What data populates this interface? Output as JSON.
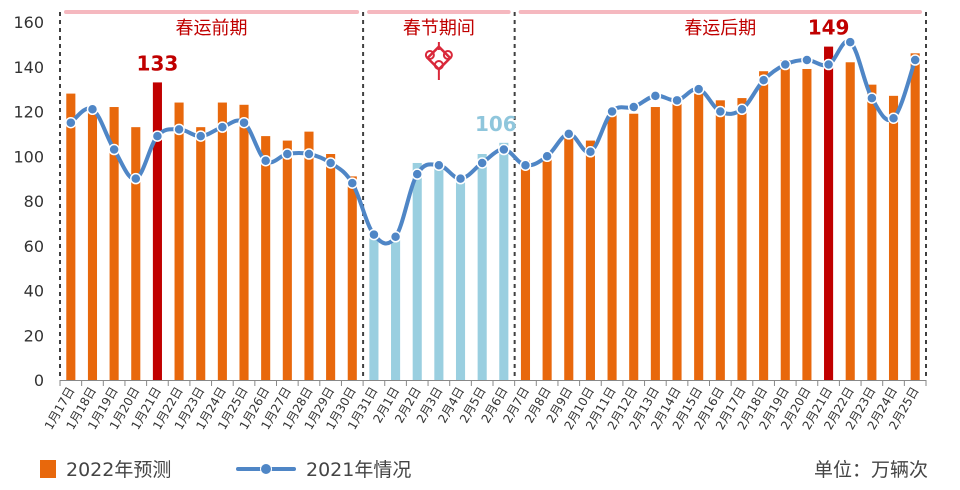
{
  "chart_data": {
    "type": "bar",
    "categories": [
      "1月17日",
      "1月18日",
      "1月19日",
      "1月20日",
      "1月21日",
      "1月22日",
      "1月23日",
      "1月24日",
      "1月25日",
      "1月26日",
      "1月27日",
      "1月28日",
      "1月29日",
      "1月30日",
      "1月31日",
      "2月1日",
      "2月2日",
      "2月3日",
      "2月4日",
      "2月5日",
      "2月6日",
      "2月7日",
      "2月8日",
      "2月9日",
      "2月10日",
      "2月11日",
      "2月12日",
      "2月13日",
      "2月14日",
      "2月15日",
      "2月16日",
      "2月17日",
      "2月18日",
      "2月19日",
      "2月20日",
      "2月21日",
      "2月22日",
      "2月23日",
      "2月24日",
      "2月25日"
    ],
    "series": [
      {
        "name": "2022年预测",
        "type": "bar",
        "values": [
          128,
          121,
          122,
          113,
          133,
          124,
          113,
          124,
          123,
          109,
          107,
          111,
          101,
          91,
          65,
          63,
          97,
          97,
          90,
          101,
          106,
          98,
          100,
          110,
          107,
          120,
          119,
          122,
          124,
          128,
          125,
          126,
          138,
          143,
          139,
          149,
          142,
          132,
          127,
          146
        ]
      },
      {
        "name": "2021年情况",
        "type": "line",
        "values": [
          115,
          121,
          103,
          90,
          109,
          112,
          109,
          113,
          115,
          98,
          101,
          101,
          97,
          88,
          65,
          64,
          92,
          96,
          90,
          97,
          103,
          96,
          100,
          110,
          102,
          120,
          122,
          127,
          125,
          130,
          120,
          121,
          134,
          141,
          143,
          141,
          151,
          126,
          117,
          143
        ]
      }
    ],
    "bar_colors": {
      "pre": "#E8680C",
      "festival": "#9ACFE0",
      "peak": "#C00000"
    },
    "line_color": "#4F86C6",
    "periods": [
      {
        "label": "春运前期",
        "start": 0,
        "end": 13
      },
      {
        "label": "春节期间",
        "start": 14,
        "end": 20
      },
      {
        "label": "春运后期",
        "start": 21,
        "end": 39
      }
    ],
    "annotations": [
      {
        "index": 4,
        "text": "133",
        "color": "#C00000"
      },
      {
        "index": 20,
        "text": "106",
        "color": "#8FC6DC"
      },
      {
        "index": 35,
        "text": "149",
        "color": "#C00000"
      }
    ],
    "yticks": [
      0,
      20,
      40,
      60,
      80,
      100,
      120,
      140,
      160
    ],
    "ylim": [
      0,
      160
    ],
    "grid": false,
    "legend_position": "bottom"
  },
  "legend": {
    "bar_label": "2022年预测",
    "line_label": "2021年情况",
    "unit": "单位：万辆次"
  },
  "knot_icon": "chinese-knot-icon"
}
